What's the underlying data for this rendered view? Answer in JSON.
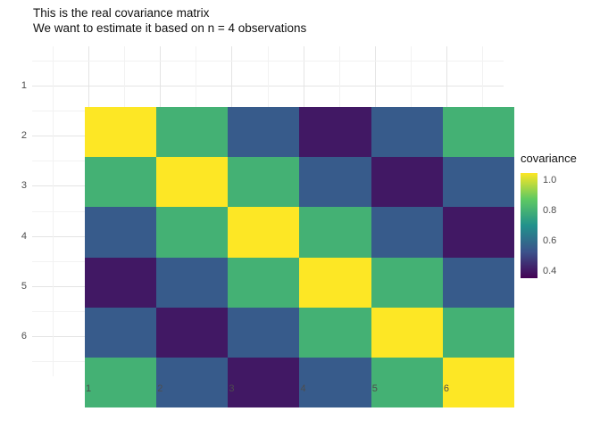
{
  "title": {
    "line1": "This is the real covariance matrix",
    "line2": "We want to estimate it based on n = 4 observations"
  },
  "chart_data": {
    "type": "heatmap",
    "title": "This is the real covariance matrix",
    "subtitle": "We want to estimate it based on n = 4 observations",
    "xlabel": "",
    "ylabel": "",
    "x_ticks": [
      "1",
      "2",
      "3",
      "4",
      "5",
      "6"
    ],
    "y_ticks": [
      "1",
      "2",
      "3",
      "4",
      "5",
      "6"
    ],
    "matrix_rows_top_to_bottom": [
      [
        1.05,
        0.8,
        0.55,
        0.4,
        0.55,
        0.8
      ],
      [
        0.8,
        1.05,
        0.8,
        0.55,
        0.4,
        0.55
      ],
      [
        0.55,
        0.8,
        1.05,
        0.8,
        0.55,
        0.4
      ],
      [
        0.4,
        0.55,
        0.8,
        1.05,
        0.8,
        0.55
      ],
      [
        0.55,
        0.4,
        0.55,
        0.8,
        1.05,
        0.8
      ],
      [
        0.8,
        0.55,
        0.4,
        0.55,
        0.8,
        1.05
      ]
    ],
    "color_domain": [
      0.35,
      1.05
    ],
    "palette_name": "viridis",
    "palette_stops": [
      {
        "t": 0.0,
        "color": "#440154"
      },
      {
        "t": 0.25,
        "color": "#3b528b"
      },
      {
        "t": 0.5,
        "color": "#21918c"
      },
      {
        "t": 0.75,
        "color": "#5ec962"
      },
      {
        "t": 1.0,
        "color": "#fde725"
      }
    ],
    "legend": {
      "title": "covariance",
      "tick_values": [
        1.0,
        0.8,
        0.6,
        0.4
      ],
      "tick_labels": [
        "1.0",
        "0.8",
        "0.6",
        "0.4"
      ],
      "position": "right"
    },
    "grid": "on",
    "legend_position": "right"
  }
}
